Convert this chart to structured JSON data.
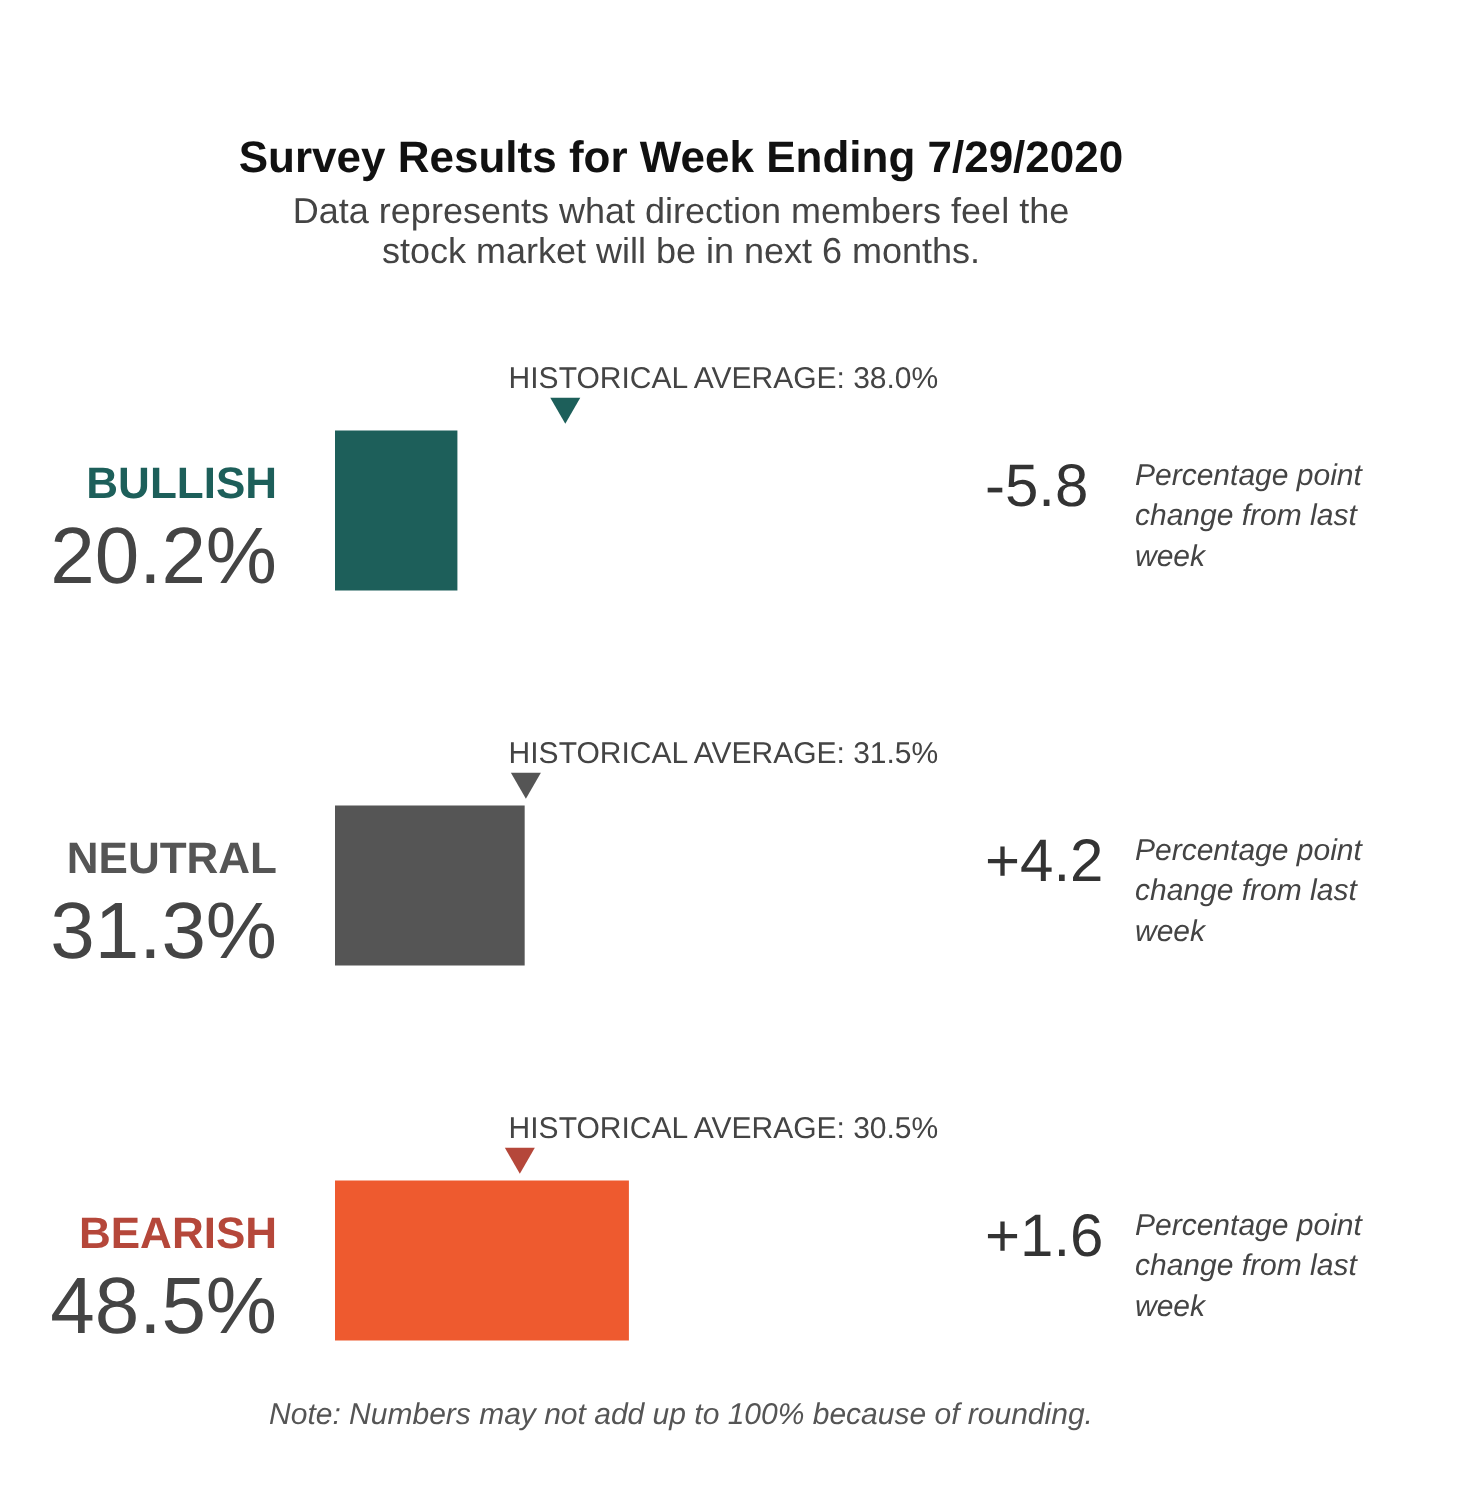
{
  "chart_data": {
    "type": "bar",
    "orientation": "horizontal",
    "title": "Survey Results for Week Ending 7/29/2020",
    "subtitle": "Data represents what direction members feel the stock market will be in next 6 months.",
    "categories": [
      "BULLISH",
      "NEUTRAL",
      "BEARISH"
    ],
    "tick_labels": "y",
    "series": [
      {
        "colors": [
          "#1d5f5a",
          "#555555",
          "#ee5a2f"
        ],
        "values": [
          20.2,
          31.3,
          48.5
        ],
        "value_labels": [
          "20.2%",
          "31.3%",
          "48.5%"
        ]
      },
      {
        "type": "scatter",
        "marker": "triangle",
        "colors": [
          "#1d5f5a",
          "#555555",
          "#b5473a"
        ],
        "values": [
          38.0,
          31.5,
          30.5
        ],
        "value_labels": [
          "HISTORICAL AVERAGE: 38.0%",
          "HISTORICAL AVERAGE: 31.5%",
          "HISTORICAL AVERAGE: 30.5%"
        ]
      }
    ],
    "annotations": [
      "-5.8",
      "Percentage point change from last week",
      "+4.2",
      "Percentage point change from last week",
      "+1.6",
      "Percentage point change from last week",
      "Note: Numbers may not add up to 100% because of rounding."
    ]
  }
}
